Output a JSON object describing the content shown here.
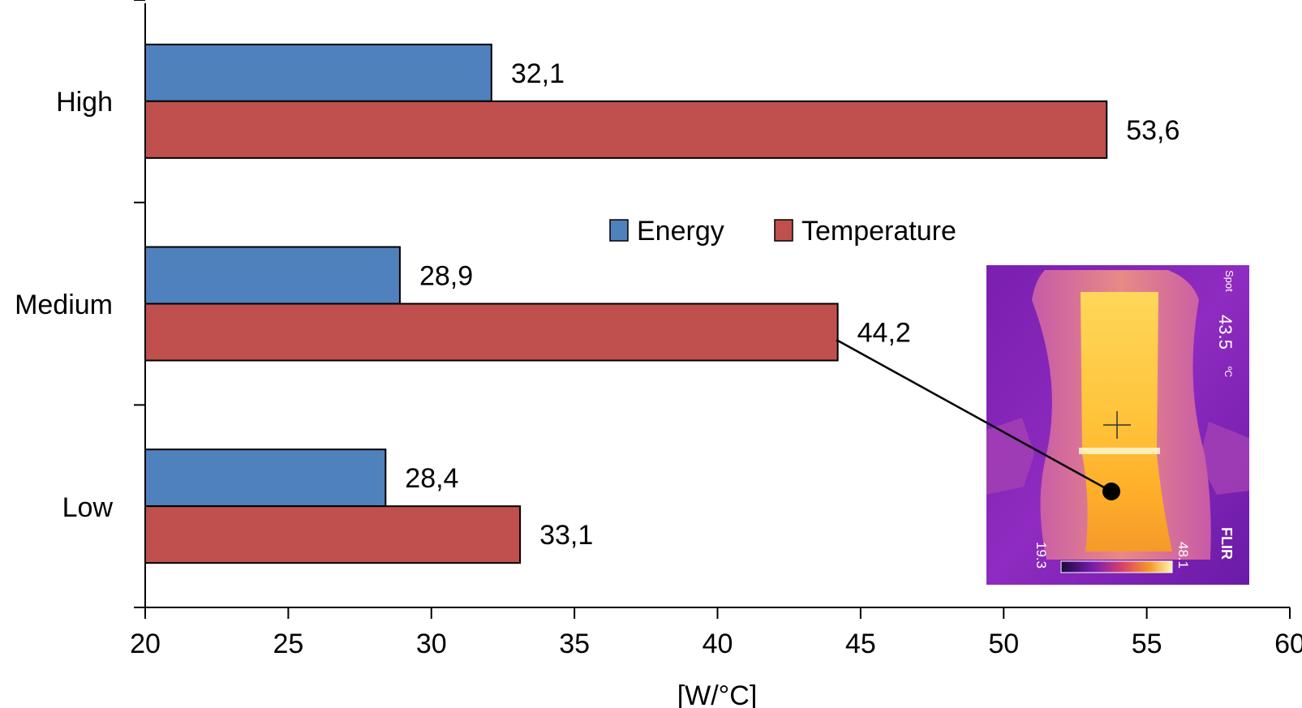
{
  "chart_data": {
    "type": "bar",
    "orientation": "horizontal",
    "categories": [
      "High",
      "Medium",
      "Low"
    ],
    "series": [
      {
        "name": "Energy",
        "values": [
          32.1,
          28.9,
          28.4
        ],
        "labels": [
          "32,1",
          "28,9",
          "28,4"
        ],
        "color": "#4F81BD"
      },
      {
        "name": "Temperature",
        "values": [
          53.6,
          44.2,
          33.1
        ],
        "labels": [
          "53,6",
          "44,2",
          "33,1"
        ],
        "color": "#C0504D"
      }
    ],
    "xlabel": "[W/°C]",
    "ylabel": "",
    "xlim": [
      20,
      60
    ],
    "xticks": [
      "20",
      "25",
      "30",
      "35",
      "40",
      "45",
      "50",
      "55",
      "60"
    ],
    "grid": false,
    "legend_position": "center-right"
  },
  "inset": {
    "spot_label": "Spot",
    "spot_value": "43.5",
    "spot_unit": "ºC",
    "scale_min": "19.3",
    "scale_max": "48.1",
    "brand": "FLIR"
  }
}
